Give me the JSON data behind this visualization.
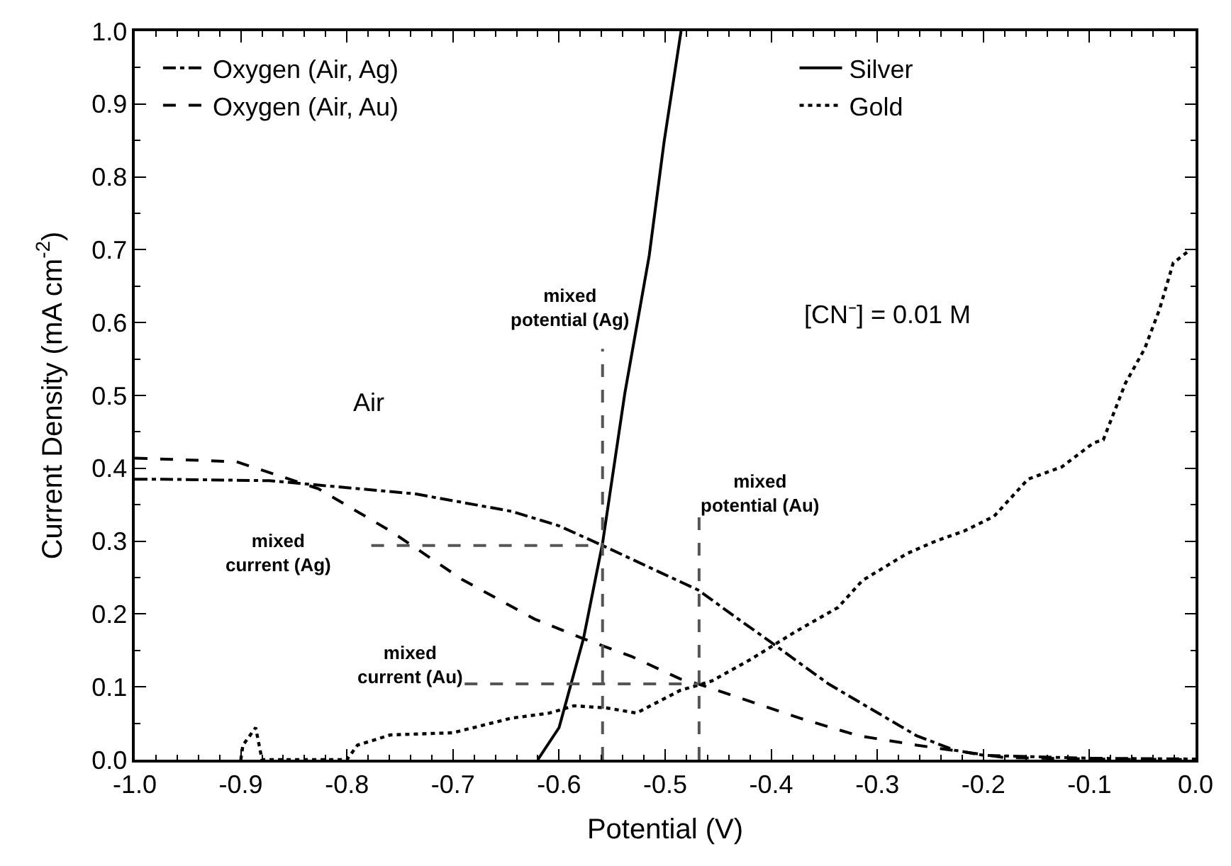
{
  "chart_data": {
    "type": "line",
    "xlabel": "Potential (V)",
    "ylabel": "Current Density (mA cm$^{-2}$)",
    "xlim": [
      -1.0,
      0.0
    ],
    "ylim": [
      0.0,
      1.0
    ],
    "xticks": [
      {
        "value": -1.0,
        "label": "-1.0"
      },
      -0.9,
      -0.8,
      -0.7,
      -0.6,
      -0.5,
      -0.4,
      -0.3,
      -0.2,
      -0.1,
      {
        "value": 0.0,
        "label": "0.0"
      }
    ],
    "yticks": [
      {
        "value": 0.0,
        "label": "0.0"
      },
      0.1,
      0.2,
      0.3,
      0.4,
      0.5,
      0.6,
      0.7,
      0.8,
      0.9,
      {
        "value": 1.0,
        "label": "1.0"
      }
    ],
    "legend": "top",
    "marker": "none",
    "series": [
      {
        "name": "Oxygen (Air, Ag)",
        "color": "#000000",
        "line_style": "dashdot",
        "x": [
          -1.0,
          -0.973,
          -0.873,
          -0.736,
          -0.645,
          -0.6,
          -0.559,
          -0.509,
          -0.469,
          -0.43,
          -0.401,
          -0.346,
          -0.263,
          -0.227,
          -0.2,
          -0.15,
          -0.1,
          0.0
        ],
        "values": [
          0.385,
          0.385,
          0.383,
          0.365,
          0.341,
          0.321,
          0.294,
          0.26,
          0.233,
          0.192,
          0.162,
          0.104,
          0.033,
          0.013,
          0.006,
          0.004,
          0.002,
          0.001
        ]
      },
      {
        "name": "Silver",
        "color": "#000000",
        "line_style": "solid",
        "x": [
          -0.62,
          -0.6,
          -0.577,
          -0.559,
          -0.538,
          -0.515,
          -0.501,
          -0.485
        ],
        "values": [
          0.0,
          0.044,
          0.166,
          0.297,
          0.503,
          0.692,
          0.848,
          1.0
        ]
      },
      {
        "name": "Oxygen (Air, Au)",
        "color": "#000000",
        "line_style": "dashed",
        "x": [
          -1.0,
          -0.904,
          -0.827,
          -0.759,
          -0.691,
          -0.623,
          -0.577,
          -0.532,
          -0.486,
          -0.469,
          -0.428,
          -0.373,
          -0.318,
          -0.263,
          -0.181,
          -0.1,
          0.0
        ],
        "values": [
          0.414,
          0.409,
          0.372,
          0.314,
          0.247,
          0.193,
          0.166,
          0.142,
          0.111,
          0.104,
          0.084,
          0.057,
          0.033,
          0.02,
          0.003,
          0.001,
          0.0
        ]
      },
      {
        "name": "Gold",
        "color": "#000000",
        "line_style": "dotted",
        "x": [
          -0.9,
          -0.898,
          -0.886,
          -0.88,
          -0.8,
          -0.79,
          -0.759,
          -0.7,
          -0.645,
          -0.609,
          -0.586,
          -0.555,
          -0.527,
          -0.486,
          -0.456,
          -0.419,
          -0.378,
          -0.337,
          -0.314,
          -0.272,
          -0.245,
          -0.218,
          -0.19,
          -0.158,
          -0.126,
          -0.096,
          -0.087,
          -0.066,
          -0.048,
          -0.034,
          -0.021,
          -0.005
        ],
        "values": [
          0.0,
          0.02,
          0.044,
          0.0,
          0.0,
          0.02,
          0.034,
          0.037,
          0.057,
          0.064,
          0.074,
          0.071,
          0.064,
          0.095,
          0.108,
          0.138,
          0.175,
          0.209,
          0.246,
          0.283,
          0.3,
          0.314,
          0.334,
          0.385,
          0.402,
          0.435,
          0.439,
          0.517,
          0.564,
          0.618,
          0.682,
          0.7
        ]
      },
      {
        "color": "#555555",
        "line_style": "dashed",
        "x": [
          -0.559,
          -0.559
        ],
        "values": [
          0.0,
          0.564
        ]
      },
      {
        "color": "#555555",
        "line_style": "dashed",
        "x": [
          -0.777,
          -0.559
        ],
        "values": [
          0.294,
          0.294
        ]
      },
      {
        "color": "#555555",
        "line_style": "dashed",
        "x": [
          -0.468,
          -0.468
        ],
        "values": [
          0.0,
          0.337
        ]
      },
      {
        "color": "#555555",
        "line_style": "dashed",
        "x": [
          -0.689,
          -0.468
        ],
        "values": [
          0.104,
          0.104
        ]
      }
    ],
    "annotations": [
      "mixed\npotential (Ag)",
      "mixed\npotential (Au)",
      "mixed\ncurrent (Ag)",
      "mixed\ncurrent (Au)",
      "Air",
      "[CN⁻] = 0.01 M"
    ]
  }
}
